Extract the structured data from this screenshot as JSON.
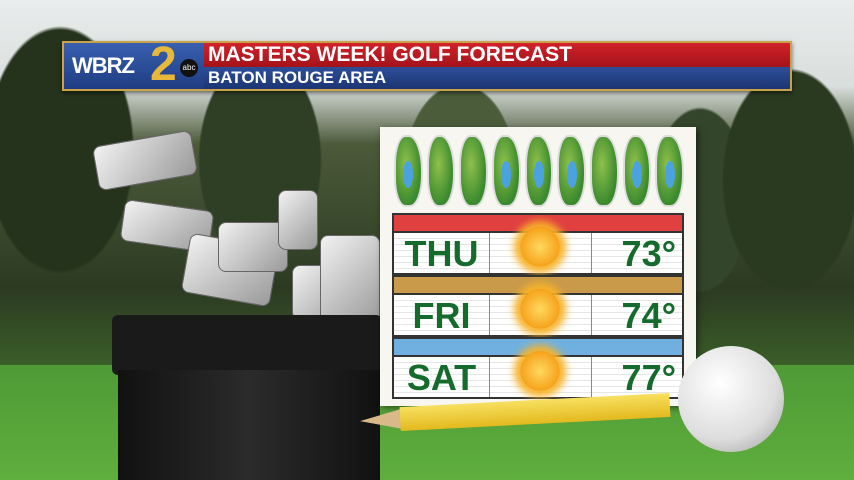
{
  "banner": {
    "logo": "WBRZ",
    "logo_number": "2",
    "network": "abc",
    "title": "MASTERS WEEK! GOLF FORECAST",
    "subtitle": "BATON ROUGE AREA",
    "red": "#c41a22",
    "blue": "#243f85"
  },
  "forecast": [
    {
      "day": "THU",
      "icon": "sunny-icon",
      "temp": "73°",
      "bar_color": "#e04040"
    },
    {
      "day": "FRI",
      "icon": "sunny-icon",
      "temp": "74°",
      "bar_color": "#c99a4a"
    },
    {
      "day": "SAT",
      "icon": "sunny-icon",
      "temp": "77°",
      "bar_color": "#6fb0e0"
    }
  ],
  "colors": {
    "text_green": "#146b2c"
  }
}
